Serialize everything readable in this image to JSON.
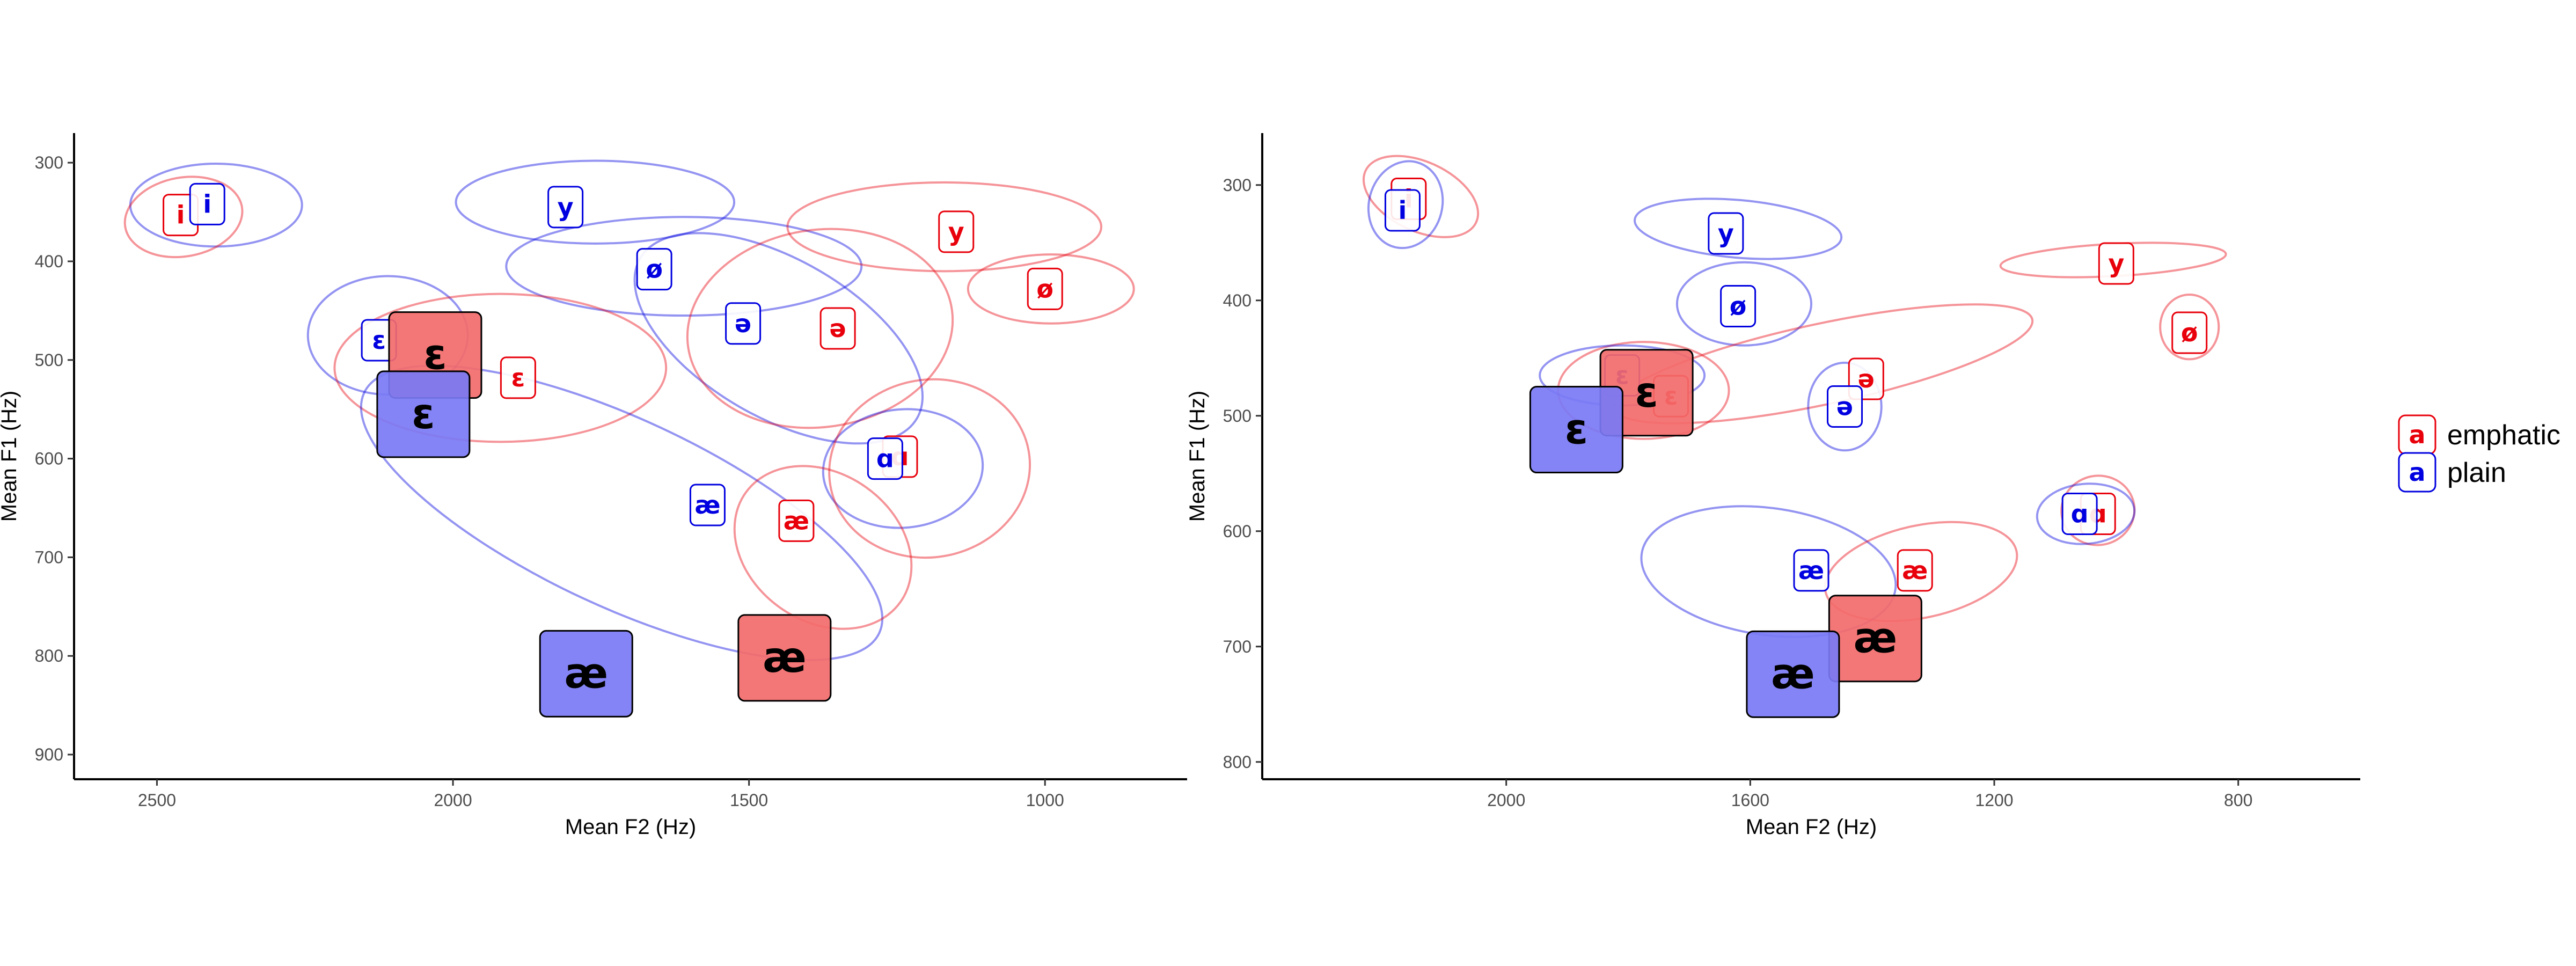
{
  "colors": {
    "emphatic": "#e8000b",
    "plain": "#0000e0",
    "emphatic_fill": "#f36b6b",
    "plain_fill": "#7a7af5"
  },
  "legend": [
    {
      "key": "emphatic",
      "symbol": "a",
      "label": "emphatic"
    },
    {
      "key": "plain",
      "symbol": "a",
      "label": "plain"
    }
  ],
  "chart_data": [
    {
      "type": "scatter",
      "xlabel": "Mean F2 (Hz)",
      "ylabel": "Mean F1 (Hz)",
      "x_reversed": true,
      "y_reversed": true,
      "xlim": [
        2640,
        760
      ],
      "ylim": [
        270,
        925
      ],
      "xticks": [
        2500,
        2000,
        1500,
        1000
      ],
      "yticks": [
        300,
        400,
        500,
        600,
        700,
        800,
        900
      ],
      "grid": false,
      "tokens": [
        {
          "series": "emphatic",
          "vowel": "i",
          "f2": 2460,
          "f1": 353
        },
        {
          "series": "plain",
          "vowel": "i",
          "f2": 2415,
          "f1": 342
        },
        {
          "series": "plain",
          "vowel": "y",
          "f2": 1810,
          "f1": 345
        },
        {
          "series": "emphatic",
          "vowel": "y",
          "f2": 1150,
          "f1": 370
        },
        {
          "series": "plain",
          "vowel": "ø",
          "f2": 1660,
          "f1": 408
        },
        {
          "series": "emphatic",
          "vowel": "ø",
          "f2": 1000,
          "f1": 428
        },
        {
          "series": "plain",
          "vowel": "ɛ",
          "f2": 2125,
          "f1": 480
        },
        {
          "series": "emphatic",
          "vowel": "ɛ",
          "f2": 1890,
          "f1": 518
        },
        {
          "series": "plain",
          "vowel": "ə",
          "f2": 1510,
          "f1": 463
        },
        {
          "series": "emphatic",
          "vowel": "ə",
          "f2": 1350,
          "f1": 468
        },
        {
          "series": "emphatic",
          "vowel": "ɑ",
          "f2": 1245,
          "f1": 598
        },
        {
          "series": "plain",
          "vowel": "ɑ",
          "f2": 1270,
          "f1": 600
        },
        {
          "series": "plain",
          "vowel": "æ",
          "f2": 1570,
          "f1": 647
        },
        {
          "series": "emphatic",
          "vowel": "æ",
          "f2": 1420,
          "f1": 663
        }
      ],
      "means": [
        {
          "series": "emphatic",
          "vowel": "ɛ",
          "f2": 2030,
          "f1": 495
        },
        {
          "series": "plain",
          "vowel": "ɛ",
          "f2": 2050,
          "f1": 555
        },
        {
          "series": "plain",
          "vowel": "æ",
          "f2": 1775,
          "f1": 818
        },
        {
          "series": "emphatic",
          "vowel": "æ",
          "f2": 1440,
          "f1": 802
        }
      ],
      "ellipses": [
        {
          "series": "plain",
          "cx": 2400,
          "cy": 343,
          "rx": 145,
          "ry": 42,
          "angle": 0
        },
        {
          "series": "emphatic",
          "cx": 2455,
          "cy": 355,
          "rx": 100,
          "ry": 40,
          "angle": -10
        },
        {
          "series": "plain",
          "cx": 1760,
          "cy": 340,
          "rx": 235,
          "ry": 42,
          "angle": 0
        },
        {
          "series": "plain",
          "cx": 1610,
          "cy": 405,
          "rx": 300,
          "ry": 50,
          "angle": 0
        },
        {
          "series": "emphatic",
          "cx": 1170,
          "cy": 365,
          "rx": 265,
          "ry": 45,
          "angle": 0
        },
        {
          "series": "emphatic",
          "cx": 990,
          "cy": 428,
          "rx": 140,
          "ry": 35,
          "angle": 0
        },
        {
          "series": "plain",
          "cx": 2110,
          "cy": 475,
          "rx": 135,
          "ry": 60,
          "angle": 0
        },
        {
          "series": "emphatic",
          "cx": 1920,
          "cy": 508,
          "rx": 280,
          "ry": 75,
          "angle": 0
        },
        {
          "series": "plain",
          "cx": 1450,
          "cy": 478,
          "rx": 270,
          "ry": 80,
          "angle": 30
        },
        {
          "series": "emphatic",
          "cx": 1380,
          "cy": 468,
          "rx": 225,
          "ry": 100,
          "angle": -8
        },
        {
          "series": "plain",
          "cx": 1240,
          "cy": 610,
          "rx": 135,
          "ry": 60,
          "angle": -5
        },
        {
          "series": "emphatic",
          "cx": 1195,
          "cy": 610,
          "rx": 170,
          "ry": 90,
          "angle": -10
        },
        {
          "series": "plain",
          "cx": 1715,
          "cy": 655,
          "rx": 480,
          "ry": 95,
          "angle": 25
        },
        {
          "series": "emphatic",
          "cx": 1375,
          "cy": 690,
          "rx": 160,
          "ry": 75,
          "angle": 35
        }
      ]
    },
    {
      "type": "scatter",
      "xlabel": "Mean F2 (Hz)",
      "ylabel": "Mean F1 (Hz)",
      "x_reversed": true,
      "y_reversed": true,
      "xlim": [
        2400,
        600
      ],
      "ylim": [
        255,
        815
      ],
      "xticks": [
        2000,
        1600,
        1200,
        800
      ],
      "yticks": [
        300,
        400,
        500,
        600,
        700,
        800
      ],
      "grid": false,
      "tokens": [
        {
          "series": "emphatic",
          "vowel": "i",
          "f2": 2160,
          "f1": 312
        },
        {
          "series": "plain",
          "vowel": "i",
          "f2": 2170,
          "f1": 322
        },
        {
          "series": "plain",
          "vowel": "y",
          "f2": 1640,
          "f1": 342
        },
        {
          "series": "emphatic",
          "vowel": "y",
          "f2": 1000,
          "f1": 368
        },
        {
          "series": "plain",
          "vowel": "ø",
          "f2": 1620,
          "f1": 405
        },
        {
          "series": "emphatic",
          "vowel": "ø",
          "f2": 880,
          "f1": 428
        },
        {
          "series": "plain",
          "vowel": "ɛ",
          "f2": 1810,
          "f1": 465
        },
        {
          "series": "emphatic",
          "vowel": "ɛ",
          "f2": 1730,
          "f1": 483
        },
        {
          "series": "emphatic",
          "vowel": "ə",
          "f2": 1410,
          "f1": 468
        },
        {
          "series": "plain",
          "vowel": "ə",
          "f2": 1445,
          "f1": 492
        },
        {
          "series": "emphatic",
          "vowel": "ɑ",
          "f2": 1030,
          "f1": 585
        },
        {
          "series": "plain",
          "vowel": "ɑ",
          "f2": 1060,
          "f1": 585
        },
        {
          "series": "plain",
          "vowel": "æ",
          "f2": 1500,
          "f1": 634
        },
        {
          "series": "emphatic",
          "vowel": "æ",
          "f2": 1330,
          "f1": 634
        }
      ],
      "means": [
        {
          "series": "emphatic",
          "vowel": "ɛ",
          "f2": 1770,
          "f1": 480
        },
        {
          "series": "plain",
          "vowel": "ɛ",
          "f2": 1885,
          "f1": 512
        },
        {
          "series": "emphatic",
          "vowel": "æ",
          "f2": 1395,
          "f1": 693
        },
        {
          "series": "plain",
          "vowel": "æ",
          "f2": 1530,
          "f1": 724
        }
      ],
      "ellipses": [
        {
          "series": "emphatic",
          "cx": 2140,
          "cy": 310,
          "rx": 100,
          "ry": 30,
          "angle": 25
        },
        {
          "series": "plain",
          "cx": 2165,
          "cy": 317,
          "rx": 60,
          "ry": 38,
          "angle": 15
        },
        {
          "series": "plain",
          "cx": 1620,
          "cy": 338,
          "rx": 170,
          "ry": 25,
          "angle": 5
        },
        {
          "series": "emphatic",
          "cx": 1005,
          "cy": 365,
          "rx": 185,
          "ry": 14,
          "angle": -3
        },
        {
          "series": "plain",
          "cx": 1610,
          "cy": 403,
          "rx": 110,
          "ry": 36,
          "angle": 0
        },
        {
          "series": "emphatic",
          "cx": 880,
          "cy": 423,
          "rx": 48,
          "ry": 28,
          "angle": 0
        },
        {
          "series": "emphatic",
          "cx": 1775,
          "cy": 478,
          "rx": 140,
          "ry": 42,
          "angle": 0
        },
        {
          "series": "plain",
          "cx": 1810,
          "cy": 465,
          "rx": 135,
          "ry": 26,
          "angle": 0
        },
        {
          "series": "emphatic",
          "cx": 1480,
          "cy": 455,
          "rx": 350,
          "ry": 35,
          "angle": -12
        },
        {
          "series": "plain",
          "cx": 1445,
          "cy": 492,
          "rx": 60,
          "ry": 38,
          "angle": 0
        },
        {
          "series": "emphatic",
          "cx": 1030,
          "cy": 582,
          "rx": 60,
          "ry": 30,
          "angle": -10
        },
        {
          "series": "plain",
          "cx": 1050,
          "cy": 585,
          "rx": 80,
          "ry": 26,
          "angle": -5
        },
        {
          "series": "plain",
          "cx": 1570,
          "cy": 635,
          "rx": 210,
          "ry": 55,
          "angle": 8
        },
        {
          "series": "emphatic",
          "cx": 1320,
          "cy": 635,
          "rx": 160,
          "ry": 40,
          "angle": -12
        }
      ]
    }
  ]
}
